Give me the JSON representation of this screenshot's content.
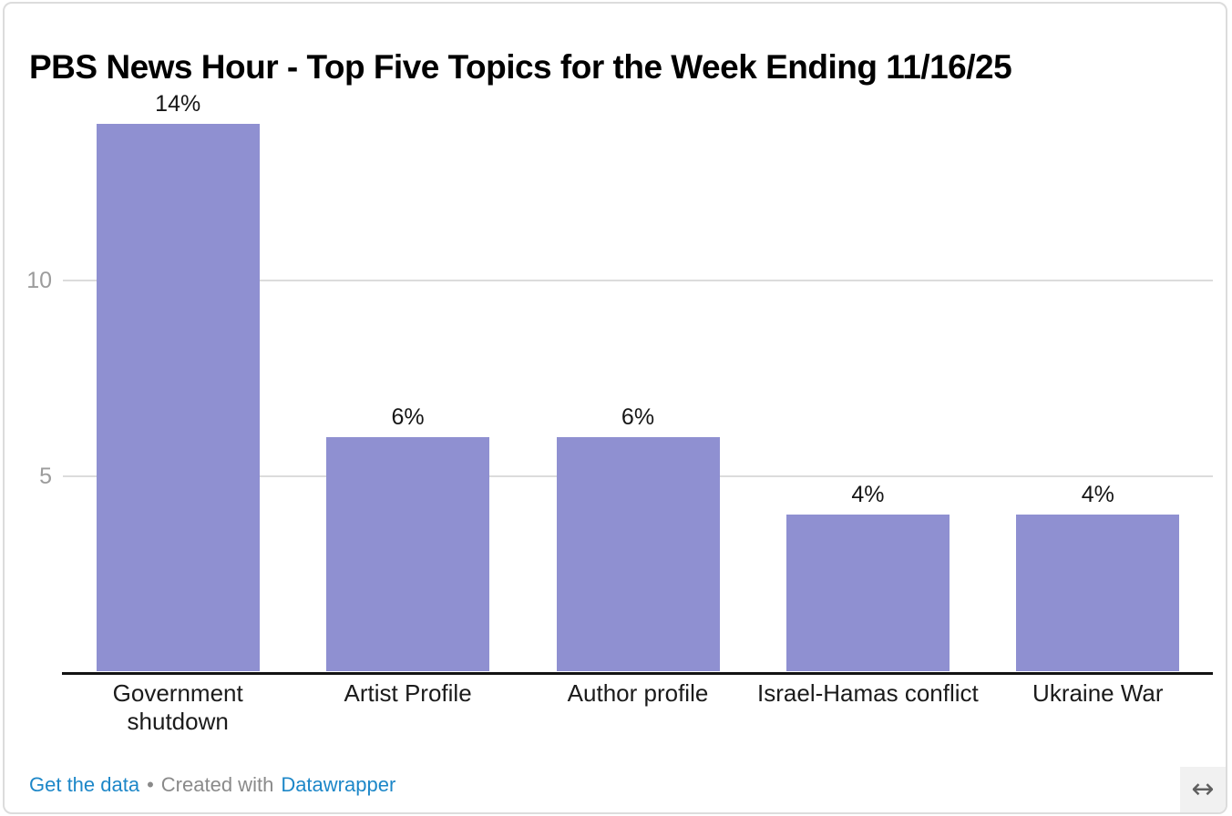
{
  "title": "PBS News Hour - Top Five Topics for the Week Ending 11/16/25",
  "chart_data": {
    "type": "bar",
    "title": "PBS News Hour - Top Five Topics for the Week Ending 11/16/25",
    "categories": [
      "Government shutdown",
      "Artist Profile",
      "Author profile",
      "Israel-Hamas conflict",
      "Ukraine War"
    ],
    "values": [
      14,
      6,
      6,
      4,
      4
    ],
    "value_labels": [
      "14%",
      "6%",
      "6%",
      "4%",
      "4%"
    ],
    "category_label_lines": [
      [
        "Government",
        "shutdown"
      ],
      [
        "Artist Profile"
      ],
      [
        "Author profile"
      ],
      [
        "Israel-Hamas conflict"
      ],
      [
        "Ukraine War"
      ]
    ],
    "xlabel": "",
    "ylabel": "",
    "ylim": [
      0,
      14
    ],
    "yticks": [
      {
        "value": 5,
        "label": "5"
      },
      {
        "value": 10,
        "label": "10"
      }
    ],
    "grid": true,
    "legend": "none",
    "bar_color": "#8f90d1"
  },
  "footer": {
    "get_data_link": "Get the data",
    "separator": "•",
    "created_with": "Created with",
    "datawrapper_link": "Datawrapper"
  },
  "icons": {
    "resize": "left-right-arrow",
    "resize_glyph": "↔"
  },
  "colors": {
    "bar": "#8f90d1",
    "link_blue": "#1d87c8",
    "footer_gray": "#8a8a8a",
    "grid_line": "#dcdcdc",
    "tick_label": "#9c9c9c",
    "axis_line": "#131313",
    "text": "#161616",
    "border": "#dcdcdc",
    "resize_bg": "#f1f1f1",
    "resize_arrow": "#5f5f5f"
  }
}
